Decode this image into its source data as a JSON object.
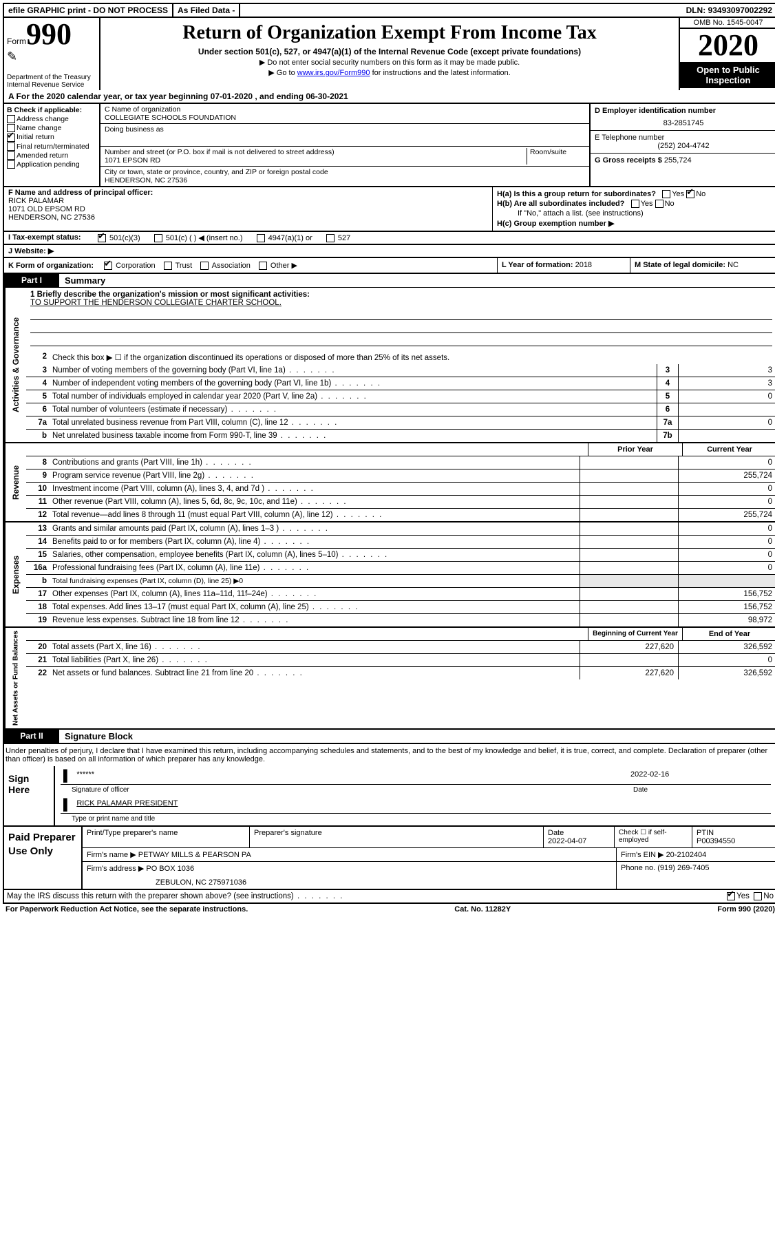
{
  "topbar": {
    "efile": "efile GRAPHIC print - DO NOT PROCESS",
    "asfiled": "As Filed Data -",
    "dln": "DLN: 93493097002292"
  },
  "header": {
    "form_label": "Form",
    "form_no": "990",
    "dept": "Department of the Treasury\nInternal Revenue Service",
    "title": "Return of Organization Exempt From Income Tax",
    "sub": "Under section 501(c), 527, or 4947(a)(1) of the Internal Revenue Code (except private foundations)",
    "note1": "▶ Do not enter social security numbers on this form as it may be made public.",
    "note2_pre": "▶ Go to ",
    "note2_link": "www.irs.gov/Form990",
    "note2_post": " for instructions and the latest information.",
    "omb": "OMB No. 1545-0047",
    "year": "2020",
    "open": "Open to Public Inspection"
  },
  "row_a": "A  For the 2020 calendar year, or tax year beginning 07-01-2020   , and ending 06-30-2021",
  "col_b": {
    "title": "B Check if applicable:",
    "items": [
      "Address change",
      "Name change",
      "Initial return",
      "Final return/terminated",
      "Amended return",
      "Application pending"
    ],
    "checked_idx": 2
  },
  "col_c": {
    "c_lbl": "C Name of organization",
    "c_val": "COLLEGIATE SCHOOLS FOUNDATION",
    "dba_lbl": "Doing business as",
    "addr_lbl": "Number and street (or P.O. box if mail is not delivered to street address)",
    "room_lbl": "Room/suite",
    "addr_val": "1071 EPSON RD",
    "city_lbl": "City or town, state or province, country, and ZIP or foreign postal code",
    "city_val": "HENDERSON, NC  27536"
  },
  "col_d": {
    "d_lbl": "D Employer identification number",
    "d_val": "83-2851745",
    "e_lbl": "E Telephone number",
    "e_val": "(252) 204-4742",
    "g_lbl": "G Gross receipts $",
    "g_val": "255,724"
  },
  "f": {
    "lbl": "F  Name and address of principal officer:",
    "name": "RICK PALAMAR",
    "addr1": "1071 OLD EPSOM RD",
    "addr2": "HENDERSON, NC  27536"
  },
  "h": {
    "ha": "H(a) Is this a group return for subordinates?",
    "ha_no": true,
    "hb": "H(b) Are all subordinates included?",
    "hnote": "If \"No,\" attach a list. (see instructions)",
    "hc": "H(c) Group exemption number ▶"
  },
  "i": {
    "lbl": "I  Tax-exempt status:",
    "opts": [
      "501(c)(3)",
      "501(c) (  ) ◀ (insert no.)",
      "4947(a)(1) or",
      "527"
    ],
    "checked_idx": 0
  },
  "j": {
    "lbl": "J  Website: ▶"
  },
  "k": {
    "lbl": "K Form of organization:",
    "opts": [
      "Corporation",
      "Trust",
      "Association",
      "Other ▶"
    ],
    "checked_idx": 0
  },
  "l": {
    "lbl": "L Year of formation:",
    "val": "2018"
  },
  "m": {
    "lbl": "M State of legal domicile:",
    "val": "NC"
  },
  "part1": {
    "tag": "Part I",
    "title": "Summary"
  },
  "mission": {
    "q1": "1 Briefly describe the organization's mission or most significant activities:",
    "ans": "TO SUPPORT THE HENDERSON COLLEGIATE CHARTER SCHOOL."
  },
  "activities": {
    "label": "Activities & Governance",
    "l2": "Check this box ▶ ☐ if the organization discontinued its operations or disposed of more than 25% of its net assets.",
    "rows": [
      {
        "n": "3",
        "t": "Number of voting members of the governing body (Part VI, line 1a)",
        "box": "3",
        "v": "3"
      },
      {
        "n": "4",
        "t": "Number of independent voting members of the governing body (Part VI, line 1b)",
        "box": "4",
        "v": "3"
      },
      {
        "n": "5",
        "t": "Total number of individuals employed in calendar year 2020 (Part V, line 2a)",
        "box": "5",
        "v": "0"
      },
      {
        "n": "6",
        "t": "Total number of volunteers (estimate if necessary)",
        "box": "6",
        "v": ""
      },
      {
        "n": "7a",
        "t": "Total unrelated business revenue from Part VIII, column (C), line 12",
        "box": "7a",
        "v": "0"
      },
      {
        "n": "b",
        "t": "Net unrelated business taxable income from Form 990-T, line 39",
        "box": "7b",
        "v": ""
      }
    ]
  },
  "revenue": {
    "label": "Revenue",
    "hdr1": "Prior Year",
    "hdr2": "Current Year",
    "rows": [
      {
        "n": "8",
        "t": "Contributions and grants (Part VIII, line 1h)",
        "p": "",
        "c": "0"
      },
      {
        "n": "9",
        "t": "Program service revenue (Part VIII, line 2g)",
        "p": "",
        "c": "255,724"
      },
      {
        "n": "10",
        "t": "Investment income (Part VIII, column (A), lines 3, 4, and 7d )",
        "p": "",
        "c": "0"
      },
      {
        "n": "11",
        "t": "Other revenue (Part VIII, column (A), lines 5, 6d, 8c, 9c, 10c, and 11e)",
        "p": "",
        "c": "0"
      },
      {
        "n": "12",
        "t": "Total revenue—add lines 8 through 11 (must equal Part VIII, column (A), line 12)",
        "p": "",
        "c": "255,724"
      }
    ]
  },
  "expenses": {
    "label": "Expenses",
    "rows": [
      {
        "n": "13",
        "t": "Grants and similar amounts paid (Part IX, column (A), lines 1–3 )",
        "p": "",
        "c": "0"
      },
      {
        "n": "14",
        "t": "Benefits paid to or for members (Part IX, column (A), line 4)",
        "p": "",
        "c": "0"
      },
      {
        "n": "15",
        "t": "Salaries, other compensation, employee benefits (Part IX, column (A), lines 5–10)",
        "p": "",
        "c": "0"
      },
      {
        "n": "16a",
        "t": "Professional fundraising fees (Part IX, column (A), line 11e)",
        "p": "",
        "c": "0"
      },
      {
        "n": "b",
        "t": "Total fundraising expenses (Part IX, column (D), line 25) ▶0",
        "p": "—",
        "c": "—"
      },
      {
        "n": "17",
        "t": "Other expenses (Part IX, column (A), lines 11a–11d, 11f–24e)",
        "p": "",
        "c": "156,752"
      },
      {
        "n": "18",
        "t": "Total expenses. Add lines 13–17 (must equal Part IX, column (A), line 25)",
        "p": "",
        "c": "156,752"
      },
      {
        "n": "19",
        "t": "Revenue less expenses. Subtract line 18 from line 12",
        "p": "",
        "c": "98,972"
      }
    ]
  },
  "netassets": {
    "label": "Net Assets or Fund Balances",
    "hdr1": "Beginning of Current Year",
    "hdr2": "End of Year",
    "rows": [
      {
        "n": "20",
        "t": "Total assets (Part X, line 16)",
        "p": "227,620",
        "c": "326,592"
      },
      {
        "n": "21",
        "t": "Total liabilities (Part X, line 26)",
        "p": "",
        "c": "0"
      },
      {
        "n": "22",
        "t": "Net assets or fund balances. Subtract line 21 from line 20",
        "p": "227,620",
        "c": "326,592"
      }
    ]
  },
  "part2": {
    "tag": "Part II",
    "title": "Signature Block"
  },
  "perjury": "Under penalties of perjury, I declare that I have examined this return, including accompanying schedules and statements, and to the best of my knowledge and belief, it is true, correct, and complete. Declaration of preparer (other than officer) is based on all information of which preparer has any knowledge.",
  "sign": {
    "lbl": "Sign Here",
    "stars": "******",
    "sig_of": "Signature of officer",
    "date": "2022-02-16",
    "date_lbl": "Date",
    "name": "RICK PALAMAR PRESIDENT",
    "type_lbl": "Type or print name and title"
  },
  "paid": {
    "lbl": "Paid Preparer Use Only",
    "h1": "Print/Type preparer's name",
    "h2": "Preparer's signature",
    "h3": "Date",
    "date": "2022-04-07",
    "h4_pre": "Check ☐ if self-employed",
    "h5": "PTIN",
    "ptin": "P00394550",
    "firm_lbl": "Firm's name   ▶",
    "firm": "PETWAY MILLS & PEARSON PA",
    "ein_lbl": "Firm's EIN ▶",
    "ein": "20-2102404",
    "addr_lbl": "Firm's address ▶",
    "addr1": "PO BOX 1036",
    "addr2": "ZEBULON, NC 275971036",
    "phone_lbl": "Phone no.",
    "phone": "(919) 269-7405"
  },
  "discuss": {
    "q": "May the IRS discuss this return with the preparer shown above? (see instructions)",
    "yes": true
  },
  "footer": {
    "pra": "For Paperwork Reduction Act Notice, see the separate instructions.",
    "cat": "Cat. No. 11282Y",
    "form": "Form 990 (2020)"
  },
  "colors": {
    "black": "#000000",
    "white": "#ffffff",
    "link": "#0000ee"
  }
}
